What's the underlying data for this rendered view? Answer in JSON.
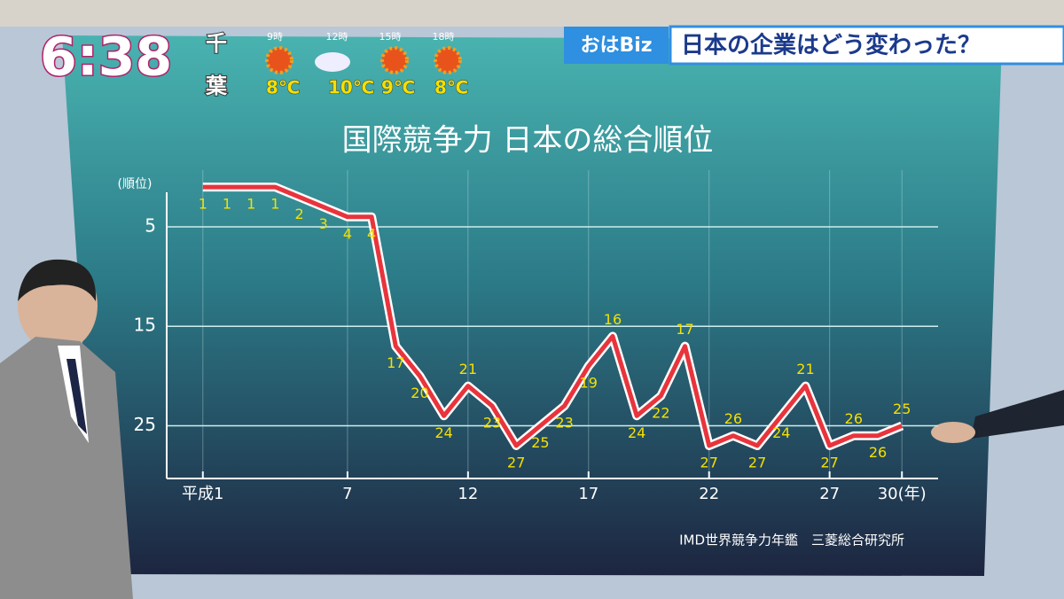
{
  "chart_data": {
    "type": "line",
    "title": "国際競争力 日本の総合順位",
    "y_label": "(順位)",
    "source": "IMD世界競争力年鑑　三菱総合研究所",
    "x": [
      1,
      2,
      3,
      4,
      5,
      6,
      7,
      8,
      9,
      10,
      11,
      12,
      13,
      14,
      15,
      16,
      17,
      18,
      19,
      20,
      21,
      22,
      23,
      24,
      25,
      26,
      27,
      28,
      29,
      30
    ],
    "series": [
      {
        "name": "総合順位",
        "color": "#e8343c",
        "values": [
          1,
          1,
          1,
          1,
          2,
          3,
          4,
          4,
          17,
          20,
          24,
          21,
          23,
          27,
          25,
          23,
          19,
          16,
          24,
          22,
          17,
          27,
          26,
          27,
          24,
          21,
          27,
          26,
          26,
          25
        ]
      }
    ],
    "xlim": [
      -0.5,
      31.5
    ],
    "xticks": [
      {
        "value": 1,
        "label": "平成1"
      },
      7,
      12,
      17,
      22,
      27,
      {
        "value": 30,
        "label": "30(年)"
      }
    ],
    "ylim": [
      30.3,
      -0.7
    ],
    "yticks": [
      5,
      15,
      25
    ],
    "grid": true
  },
  "overlay": {
    "clock": "6:38",
    "place": [
      "千",
      "葉"
    ],
    "weather": [
      {
        "time": "9時",
        "temp": "8℃"
      },
      {
        "time": "12時",
        "temp": "10℃"
      },
      {
        "time": "15時",
        "temp": "9℃"
      },
      {
        "time": "18時",
        "temp": "8℃"
      }
    ],
    "program": "おはBiz",
    "headline": "日本の企業はどう変わった？"
  }
}
